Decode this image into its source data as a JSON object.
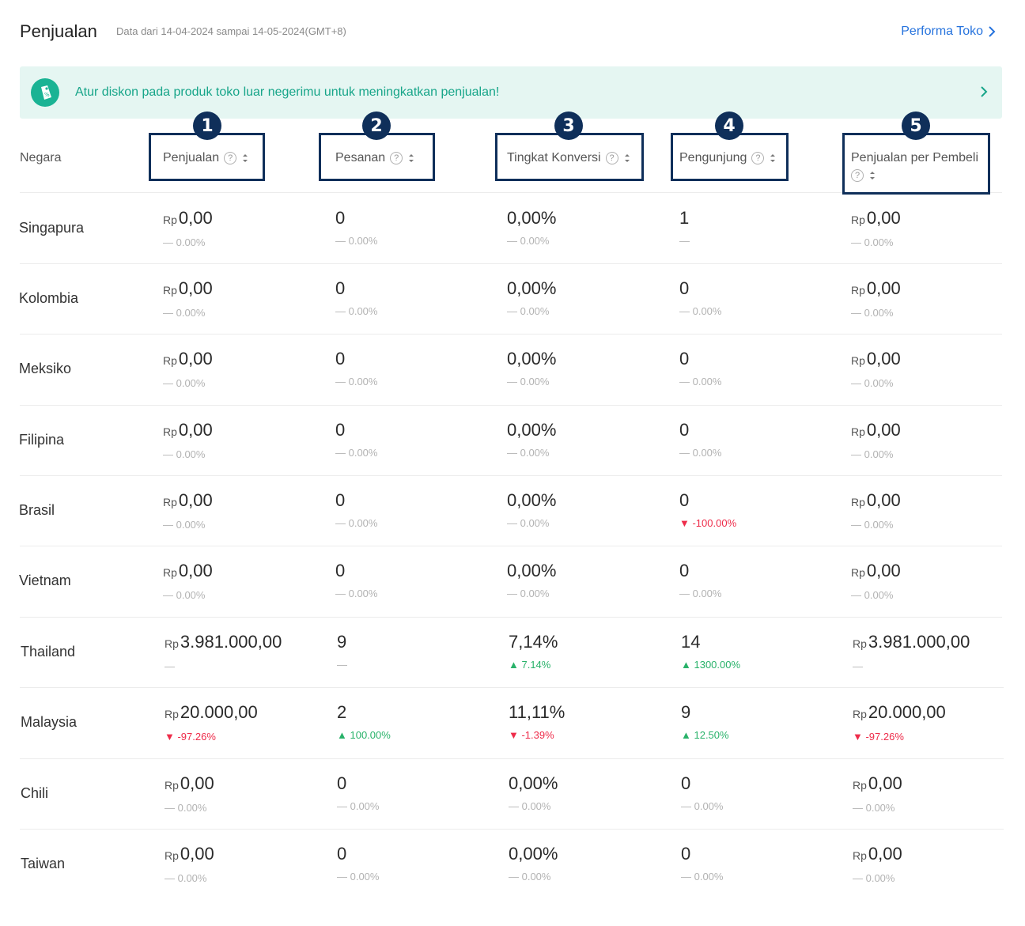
{
  "header": {
    "title": "Penjualan",
    "subtitle": "Data dari 14-04-2024 sampai 14-05-2024(GMT+8)",
    "link_label": "Performa Toko"
  },
  "banner": {
    "icon": "discount-tag-icon",
    "text": "Atur diskon pada produk toko luar negerimu untuk meningkatkan penjualan!"
  },
  "columns": {
    "country": "Negara",
    "sales": "Penjualan",
    "orders": "Pesanan",
    "conversion": "Tingkat Konversi",
    "visitors": "Pengunjung",
    "sales_per_buyer": "Penjualan per Pembeli"
  },
  "annotations": [
    "1",
    "2",
    "3",
    "4",
    "5"
  ],
  "currency": "Rp",
  "colors": {
    "accent": "#2673dd",
    "banner_bg": "#e5f6f2",
    "banner_text": "#17a589",
    "up": "#29b26a",
    "down": "#ee2c4a",
    "annotation": "#0f2f5a"
  },
  "rows": [
    {
      "country": "Singapura",
      "sales": "0,00",
      "sales_chg": "— 0.00%",
      "orders": "0",
      "orders_chg": "— 0.00%",
      "conv": "0,00%",
      "conv_chg": "— 0.00%",
      "visitors": "1",
      "visitors_chg": "—",
      "spb": "0,00",
      "spb_chg": "— 0.00%"
    },
    {
      "country": "Kolombia",
      "sales": "0,00",
      "sales_chg": "— 0.00%",
      "orders": "0",
      "orders_chg": "— 0.00%",
      "conv": "0,00%",
      "conv_chg": "— 0.00%",
      "visitors": "0",
      "visitors_chg": "— 0.00%",
      "spb": "0,00",
      "spb_chg": "— 0.00%"
    },
    {
      "country": "Meksiko",
      "sales": "0,00",
      "sales_chg": "— 0.00%",
      "orders": "0",
      "orders_chg": "— 0.00%",
      "conv": "0,00%",
      "conv_chg": "— 0.00%",
      "visitors": "0",
      "visitors_chg": "— 0.00%",
      "spb": "0,00",
      "spb_chg": "— 0.00%"
    },
    {
      "country": "Filipina",
      "sales": "0,00",
      "sales_chg": "— 0.00%",
      "orders": "0",
      "orders_chg": "— 0.00%",
      "conv": "0,00%",
      "conv_chg": "— 0.00%",
      "visitors": "0",
      "visitors_chg": "— 0.00%",
      "spb": "0,00",
      "spb_chg": "— 0.00%"
    },
    {
      "country": "Brasil",
      "sales": "0,00",
      "sales_chg": "— 0.00%",
      "orders": "0",
      "orders_chg": "— 0.00%",
      "conv": "0,00%",
      "conv_chg": "— 0.00%",
      "visitors": "0",
      "visitors_chg": "▼ -100.00%",
      "spb": "0,00",
      "spb_chg": "— 0.00%"
    },
    {
      "country": "Vietnam",
      "sales": "0,00",
      "sales_chg": "— 0.00%",
      "orders": "0",
      "orders_chg": "— 0.00%",
      "conv": "0,00%",
      "conv_chg": "— 0.00%",
      "visitors": "0",
      "visitors_chg": "— 0.00%",
      "spb": "0,00",
      "spb_chg": "— 0.00%"
    },
    {
      "country": "Thailand",
      "sales": "3.981.000,00",
      "sales_chg": "—",
      "orders": "9",
      "orders_chg": "—",
      "conv": "7,14%",
      "conv_chg": "▲ 7.14%",
      "visitors": "14",
      "visitors_chg": "▲ 1300.00%",
      "spb": "3.981.000,00",
      "spb_chg": "—"
    },
    {
      "country": "Malaysia",
      "sales": "20.000,00",
      "sales_chg": "▼ -97.26%",
      "orders": "2",
      "orders_chg": "▲ 100.00%",
      "conv": "11,11%",
      "conv_chg": "▼ -1.39%",
      "visitors": "9",
      "visitors_chg": "▲ 12.50%",
      "spb": "20.000,00",
      "spb_chg": "▼ -97.26%"
    },
    {
      "country": "Chili",
      "sales": "0,00",
      "sales_chg": "— 0.00%",
      "orders": "0",
      "orders_chg": "— 0.00%",
      "conv": "0,00%",
      "conv_chg": "— 0.00%",
      "visitors": "0",
      "visitors_chg": "— 0.00%",
      "spb": "0,00",
      "spb_chg": "— 0.00%"
    },
    {
      "country": "Taiwan",
      "sales": "0,00",
      "sales_chg": "— 0.00%",
      "orders": "0",
      "orders_chg": "— 0.00%",
      "conv": "0,00%",
      "conv_chg": "— 0.00%",
      "visitors": "0",
      "visitors_chg": "— 0.00%",
      "spb": "0,00",
      "spb_chg": "— 0.00%"
    }
  ]
}
